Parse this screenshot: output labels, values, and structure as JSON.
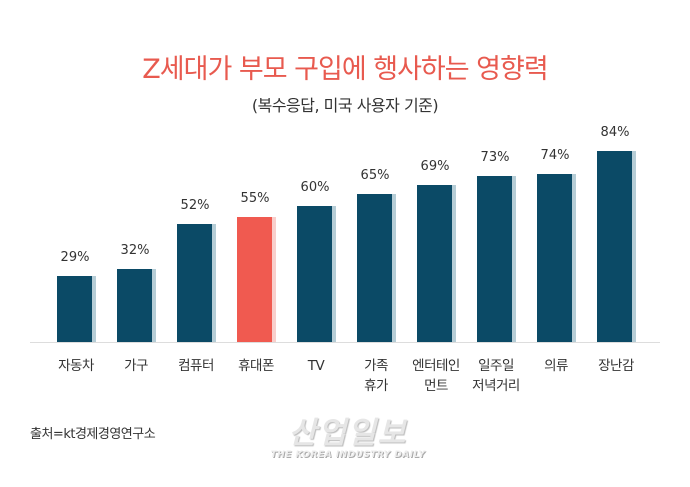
{
  "header": {
    "title": "Z세대가 부모 구입에 행사하는 영향력",
    "subtitle": "(복수응답, 미국 사용자 기준)"
  },
  "colors": {
    "title": "#e85a4f",
    "bar": "#0b4a66",
    "bar_shadow": "#b6cdd6",
    "highlight": "#f05a50",
    "highlight_shadow": "#f9cfcc"
  },
  "chart_data": {
    "type": "bar",
    "title": "Z세대가 부모 구입에 행사하는 영향력",
    "subtitle": "(복수응답, 미국 사용자 기준)",
    "categories": [
      "자동차",
      "가구",
      "컴퓨터",
      "휴대폰",
      "TV",
      "가족\n휴가",
      "엔터테인\n먼트",
      "일주일\n저녁거리",
      "의류",
      "장난감"
    ],
    "values": [
      29,
      32,
      52,
      55,
      60,
      65,
      69,
      73,
      74,
      84
    ],
    "value_labels": [
      "29%",
      "32%",
      "52%",
      "55%",
      "60%",
      "65%",
      "69%",
      "73%",
      "74%",
      "84%"
    ],
    "highlight_index": 3,
    "xlabel": "",
    "ylabel": "",
    "ylim": [
      0,
      100
    ],
    "grid": false,
    "legend": "none"
  },
  "footer": {
    "source": "출처=kt경제경영연구소",
    "watermark_main": "산업일보",
    "watermark_sub": "THE KOREA INDUSTRY DAILY"
  }
}
